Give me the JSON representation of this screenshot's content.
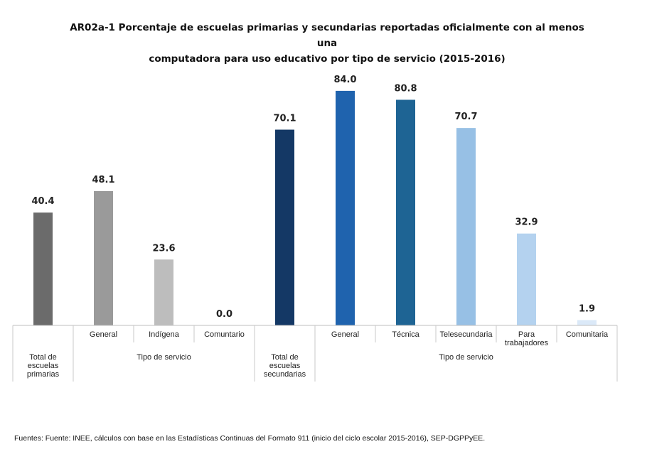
{
  "title_line1": "AR02a-1 Porcentaje de escuelas primarias y secundarias reportadas oficialmente con al menos una",
  "title_line2": "computadora para uso educativo por tipo de servicio (2015-2016)",
  "source": "Fuentes: Fuente: INEE, cálculos con base en las Estadísticas Continuas del Formato 911 (inicio del ciclo escolar 2015-2016), SEP-DGPPyEE.",
  "chart_data": {
    "type": "bar",
    "categories": [
      "Total de escuelas primarias",
      "General",
      "Indígena",
      "Comuntario",
      "Total de escuelas secundarias",
      "General",
      "Técnica",
      "Telesecundaria",
      "Para trabajadores",
      "Comunitaria"
    ],
    "category_lines": [
      [
        "Total de",
        "escuelas",
        "primarias"
      ],
      [
        "General"
      ],
      [
        "Indígena"
      ],
      [
        "Comuntario"
      ],
      [
        "Total de",
        "escuelas",
        "secundarias"
      ],
      [
        "General"
      ],
      [
        "Técnica"
      ],
      [
        "Telesecundaria"
      ],
      [
        "Para",
        "trabajadores"
      ],
      [
        "Comunitaria"
      ]
    ],
    "values": [
      40.4,
      48.1,
      23.6,
      0.0,
      70.1,
      84.0,
      80.8,
      70.7,
      32.9,
      1.9
    ],
    "value_labels": [
      "40.4",
      "48.1",
      "23.6",
      "0.0",
      "70.1",
      "84.0",
      "80.8",
      "70.7",
      "32.9",
      "1.9"
    ],
    "colors": [
      "#6b6b6b",
      "#9a9a9a",
      "#bdbdbd",
      "#d0d0d0",
      "#143865",
      "#1f63ae",
      "#1e6494",
      "#97c0e5",
      "#b4d2ef",
      "#dbe9f8"
    ],
    "group_labels": [
      "Tipo de servicio",
      "Tipo de servicio"
    ],
    "ylim": [
      0,
      100
    ],
    "grid": false,
    "legend": "none"
  }
}
